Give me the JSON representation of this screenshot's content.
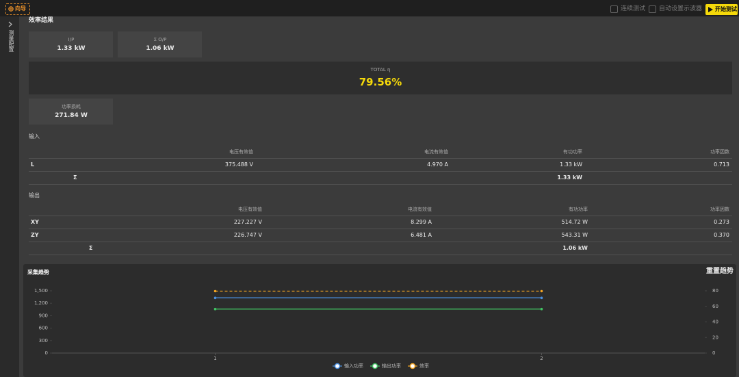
{
  "toolbar": {
    "guide": "向导",
    "continuous_test": "连续测试",
    "auto_scope": "自动设置示波器",
    "start": "开始测试"
  },
  "sidebar": {
    "label": "测量配置"
  },
  "results": {
    "title": "效率结果",
    "cards": [
      {
        "label": "I/P",
        "value": "1.33 kW"
      },
      {
        "label": "Σ O/P",
        "value": "1.06 kW"
      }
    ],
    "total": {
      "label": "TOTAL η",
      "value": "79.56%"
    },
    "loss": {
      "label": "功率损耗",
      "value": "271.84 W"
    }
  },
  "input": {
    "title": "输入",
    "headers": [
      "电压有效值",
      "电流有效值",
      "有功功率",
      "功率因数"
    ],
    "rows": [
      [
        "L",
        "375.488 V",
        "4.970 A",
        "1.33 kW",
        "0.713"
      ]
    ],
    "sum": {
      "label": "Σ",
      "power": "1.33 kW"
    }
  },
  "output": {
    "title": "输出",
    "headers": [
      "电压有效值",
      "电流有效值",
      "有功功率",
      "功率因数"
    ],
    "rows": [
      [
        "XY",
        "227.227 V",
        "8.299 A",
        "514.72 W",
        "0.273"
      ],
      [
        "ZY",
        "226.747 V",
        "6.481 A",
        "543.31 W",
        "0.370"
      ]
    ],
    "sum": {
      "label": "Σ",
      "power": "1.06 kW"
    }
  },
  "trend_panel": {
    "reset": "重置趋势"
  },
  "chart_data": {
    "type": "line",
    "title": "采集趋势",
    "x": [
      1,
      2
    ],
    "xlim": [
      0.5,
      2.5
    ],
    "xticks": [
      1,
      2
    ],
    "ylim": [
      0,
      1500
    ],
    "yticks": [
      0,
      300,
      600,
      900,
      {
        "value": 1200,
        "label": "1,200"
      },
      {
        "value": 1500,
        "label": "1,500"
      }
    ],
    "y2lim": [
      0,
      80
    ],
    "y2ticks": [
      0,
      20,
      40,
      60,
      80
    ],
    "legend": "bottom",
    "series": [
      {
        "name": "输入功率",
        "color": "#4a90e2",
        "values": [
          1330,
          1330
        ]
      },
      {
        "name": "输出功率",
        "color": "#41c463",
        "values": [
          1060,
          1060
        ]
      },
      {
        "name": "效率",
        "color": "#f5a623",
        "values": [
          79.56,
          79.56
        ],
        "axis": "y2",
        "linestyle": "dashed"
      }
    ]
  }
}
